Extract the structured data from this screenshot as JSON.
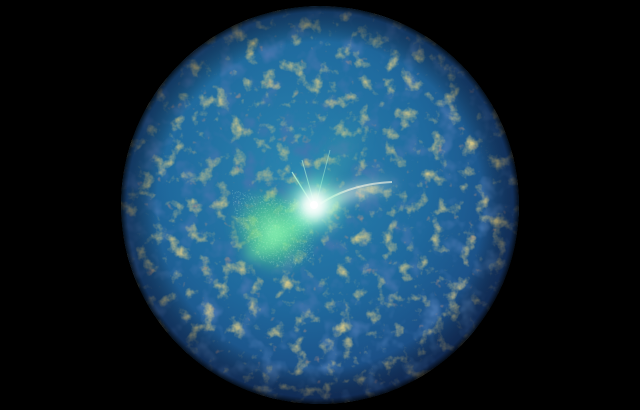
{
  "image": {
    "subject": "cmb-sphere",
    "colors": {
      "background": "#000000",
      "sphere_base": "#1f5f93",
      "sphere_dark": "#163d73",
      "sphere_warm": "#c8a23c",
      "sphere_hot": "#b45a35",
      "burst_core": "#f7ffff",
      "burst_glow": "#7dffa0",
      "burst_green": "#57d88e",
      "jet": "#f0eddc"
    }
  }
}
